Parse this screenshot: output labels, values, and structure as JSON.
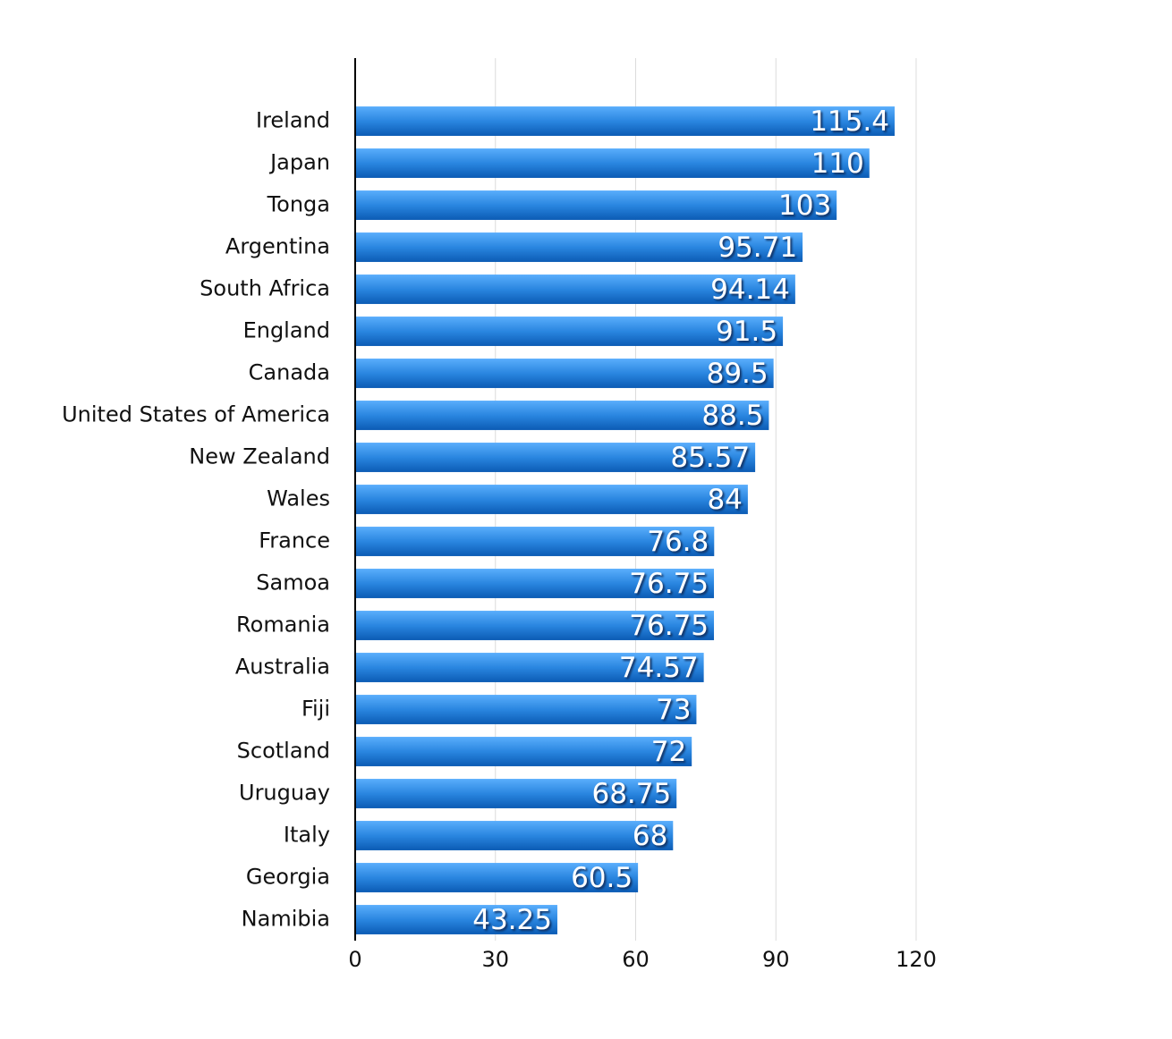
{
  "chart_data": {
    "type": "hbar",
    "categories": [
      "Ireland",
      "Japan",
      "Tonga",
      "Argentina",
      "South Africa",
      "England",
      "Canada",
      "United States of America",
      "New Zealand",
      "Wales",
      "France",
      "Samoa",
      "Romania",
      "Australia",
      "Fiji",
      "Scotland",
      "Uruguay",
      "Italy",
      "Georgia",
      "Namibia"
    ],
    "values": [
      115.4,
      110,
      103,
      95.71,
      94.14,
      91.5,
      89.5,
      88.5,
      85.57,
      84,
      76.8,
      76.75,
      76.75,
      74.57,
      73,
      72,
      68.75,
      68,
      60.5,
      43.25
    ],
    "color": "#2a86e0",
    "xlim": [
      0,
      120
    ],
    "xticks": [
      0,
      30,
      60,
      90,
      120
    ],
    "grid": true
  }
}
